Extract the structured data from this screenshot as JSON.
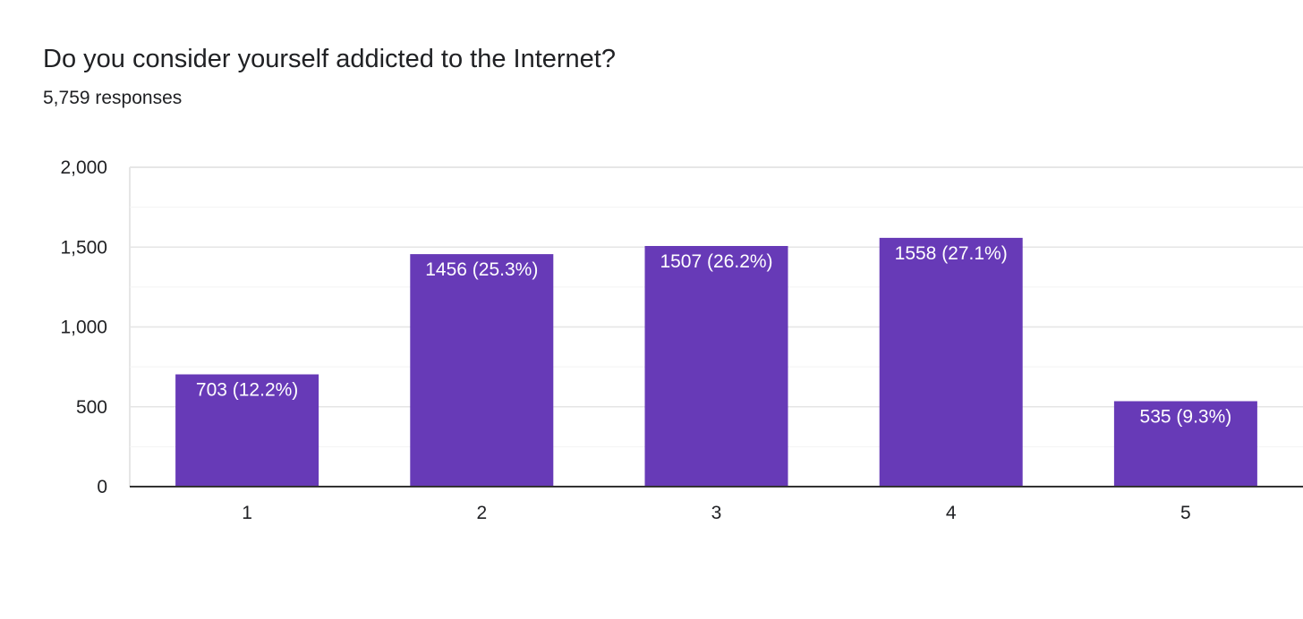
{
  "header": {
    "title": "Do you consider yourself addicted to the Internet?",
    "responses": "5,759 responses"
  },
  "chart_data": {
    "type": "bar",
    "categories": [
      "1",
      "2",
      "3",
      "4",
      "5"
    ],
    "values": [
      703,
      1456,
      1507,
      1558,
      535
    ],
    "data_labels": [
      "703 (12.2%)",
      "1456 (25.3%)",
      "1507 (26.2%)",
      "1558 (27.1%)",
      "535 (9.3%)"
    ],
    "ylim": [
      0,
      2000
    ],
    "yticks": [
      0,
      500,
      1000,
      1500,
      2000
    ],
    "ytick_labels": [
      "0",
      "500",
      "1,000",
      "1,500",
      "2,000"
    ],
    "grid": true,
    "bar_color": "#673ab7"
  }
}
